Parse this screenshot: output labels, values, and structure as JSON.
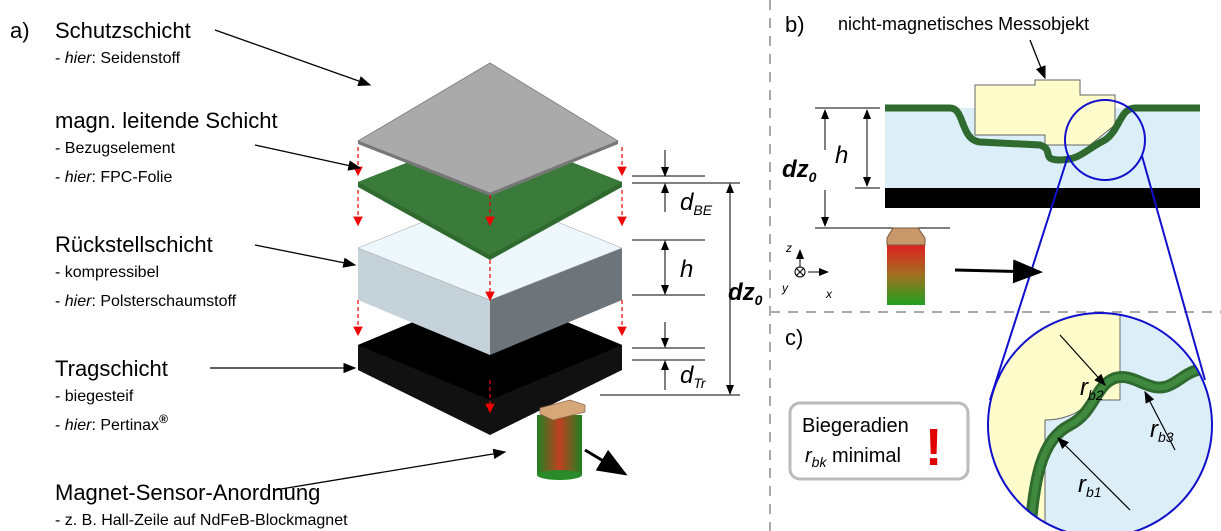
{
  "panel_a": {
    "label": "a)",
    "layers": [
      {
        "title": "Schutzschicht",
        "notes": [
          {
            "pre": "- ",
            "em": "hier",
            "post": ": Seidenstoff"
          }
        ]
      },
      {
        "title": "magn. leitende Schicht",
        "notes": [
          {
            "pre": "- Bezugselement"
          },
          {
            "pre": "- ",
            "em": "hier",
            "post": ": FPC-Folie"
          }
        ]
      },
      {
        "title": "Rückstellschicht",
        "notes": [
          {
            "pre": "- kompressibel"
          },
          {
            "pre": "- ",
            "em": "hier",
            "post": ": Polsterschaumstoff"
          }
        ]
      },
      {
        "title": "Tragschicht",
        "notes": [
          {
            "pre": "- biegesteif"
          },
          {
            "pre": "- ",
            "em": "hier",
            "post": ": Pertinax",
            "sup": "®"
          }
        ]
      },
      {
        "title": "Magnet-Sensor-Anordnung",
        "notes": [
          {
            "pre": "- z. B. Hall-Zeile auf NdFeB-Blockmagnet"
          }
        ]
      }
    ],
    "dimensions": {
      "d_be": {
        "main": "d",
        "sub": "BE"
      },
      "h": {
        "main": "h"
      },
      "dz0": {
        "main": "dz",
        "sub": "0"
      },
      "d_tr": {
        "main": "d",
        "sub": "Tr"
      }
    }
  },
  "panel_b": {
    "label": "b)",
    "title": "nicht-magnetisches Messobjekt",
    "dz0": {
      "main": "dz",
      "sub": "0"
    },
    "h": "h",
    "axes": {
      "z": "z",
      "y": "y",
      "x": "x"
    }
  },
  "panel_c": {
    "label": "c)",
    "box": {
      "line1": "Biegeradien",
      "r": "r",
      "r_sub": "bk",
      "rest": " minimal",
      "mark": "!"
    },
    "radii": [
      {
        "main": "r",
        "sub": "b1"
      },
      {
        "main": "r",
        "sub": "b2"
      },
      {
        "main": "r",
        "sub": "b3"
      }
    ]
  }
}
